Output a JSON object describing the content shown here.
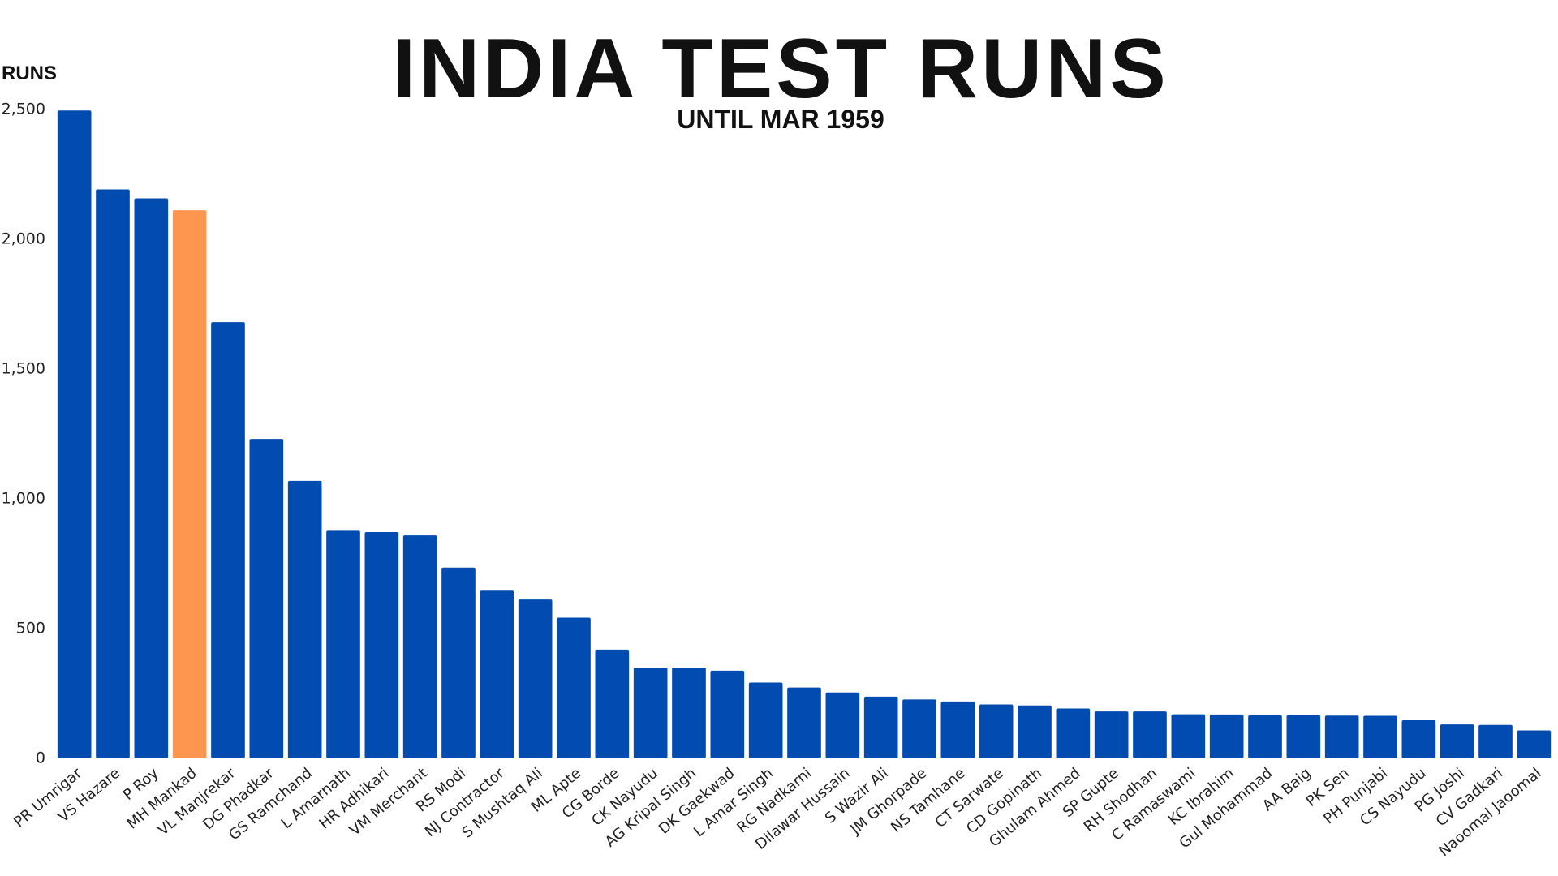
{
  "chart_data": {
    "type": "bar",
    "title": "INDIA TEST RUNS",
    "subtitle": "UNTIL MAR 1959",
    "y_label": "RUNS",
    "categories": [
      "PR Umrigar",
      "VS Hazare",
      "P Roy",
      "MH Mankad",
      "VL Manjrekar",
      "DG Phadkar",
      "GS Ramchand",
      "L Amarnath",
      "HR Adhikari",
      "VM Merchant",
      "RS Modi",
      "NJ Contractor",
      "S Mushtaq Ali",
      "ML Apte",
      "CG Borde",
      "CK Nayudu",
      "AG Kripal Singh",
      "DK Gaekwad",
      "L Amar Singh",
      "RG Nadkarni",
      "Dilawar Hussain",
      "S Wazir Ali",
      "JM Ghorpade",
      "NS Tamhane",
      "CT Sarwate",
      "CD Gopinath",
      "Ghulam Ahmed",
      "SP Gupte",
      "RH Shodhan",
      "C Ramaswami",
      "KC Ibrahim",
      "Gul Mohammad",
      "AA Baig",
      "PK Sen",
      "PH Punjabi",
      "CS Nayudu",
      "PG Joshi",
      "CV Gadkari",
      "Naoomal Jaoomal"
    ],
    "values": [
      2496,
      2192,
      2158,
      2112,
      1681,
      1231,
      1069,
      877,
      872,
      859,
      735,
      646,
      612,
      542,
      419,
      350,
      350,
      338,
      292,
      273,
      254,
      238,
      227,
      219,
      208,
      204,
      192,
      181,
      181,
      170,
      169,
      166,
      166,
      165,
      164,
      147,
      131,
      129,
      108
    ],
    "color": "#024bb0",
    "highlight_color": "#ff9650",
    "highlight_index": 3,
    "ylim": [
      0,
      2500
    ],
    "yticks": [
      0,
      500,
      {
        "value": 1000,
        "label": "1,000"
      },
      {
        "value": 1500,
        "label": "1,500"
      },
      {
        "value": 2000,
        "label": "2,000"
      },
      {
        "value": 2500,
        "label": "2,500"
      }
    ],
    "grid": false
  }
}
